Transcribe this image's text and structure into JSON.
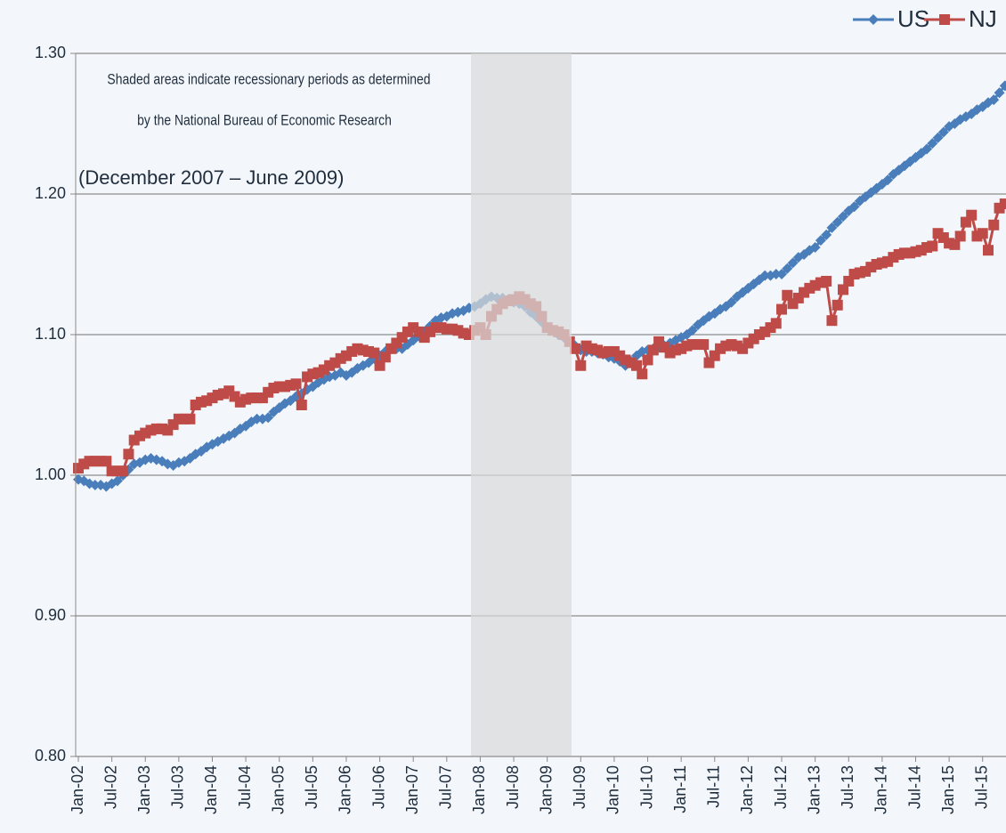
{
  "chart_data": {
    "type": "line",
    "annotations": [
      "Shaded areas indicate recessionary periods as determined",
      "by the National  Bureau of Economic Research",
      "(December 2007 – June 2009)"
    ],
    "categories": [
      "Jan-02",
      null,
      null,
      null,
      null,
      null,
      "Jul-02",
      null,
      null,
      null,
      null,
      null,
      "Jan-03",
      null,
      null,
      null,
      null,
      null,
      "Jul-03",
      null,
      null,
      null,
      null,
      null,
      "Jan-04",
      null,
      null,
      null,
      null,
      null,
      "Jul-04",
      null,
      null,
      null,
      null,
      null,
      "Jan-05",
      null,
      null,
      null,
      null,
      null,
      "Jul-05",
      null,
      null,
      null,
      null,
      null,
      "Jan-06",
      null,
      null,
      null,
      null,
      null,
      "Jul-06",
      null,
      null,
      null,
      null,
      null,
      "Jan-07",
      null,
      null,
      null,
      null,
      null,
      "Jul-07",
      null,
      null,
      null,
      null,
      null,
      "Jan-08",
      null,
      null,
      null,
      null,
      null,
      "Jul-08",
      null,
      null,
      null,
      null,
      null,
      "Jan-09",
      null,
      null,
      null,
      null,
      null,
      "Jul-09",
      null,
      null,
      null,
      null,
      null,
      "Jan-10",
      null,
      null,
      null,
      null,
      null,
      "Jul-10",
      null,
      null,
      null,
      null,
      null,
      "Jan-11",
      null,
      null,
      null,
      null,
      null,
      "Jul-11",
      null,
      null,
      null,
      null,
      null,
      "Jan-12",
      null,
      null,
      null,
      null,
      null,
      "Jul-12",
      null,
      null,
      null,
      null,
      null,
      "Jan-13",
      null,
      null,
      null,
      null,
      null,
      "Jul-13",
      null,
      null,
      null,
      null,
      null,
      "Jan-14",
      null,
      null,
      null,
      null,
      null,
      "Jul-14",
      null,
      null,
      null,
      null,
      null,
      "Jan-15",
      null,
      null,
      null,
      null,
      null,
      "Jul-15",
      null,
      null,
      null,
      null
    ],
    "series": [
      {
        "name": "US",
        "color": "#4a7ebb",
        "marker": "diamond",
        "values": [
          0.997,
          0.996,
          0.994,
          0.993,
          0.993,
          0.992,
          0.994,
          0.996,
          1.0,
          1.004,
          1.008,
          1.009,
          1.011,
          1.012,
          1.011,
          1.01,
          1.008,
          1.007,
          1.009,
          1.01,
          1.012,
          1.015,
          1.017,
          1.02,
          1.022,
          1.024,
          1.026,
          1.028,
          1.03,
          1.033,
          1.035,
          1.038,
          1.04,
          1.04,
          1.041,
          1.045,
          1.048,
          1.051,
          1.053,
          1.056,
          1.058,
          1.061,
          1.063,
          1.066,
          1.068,
          1.07,
          1.071,
          1.073,
          1.071,
          1.073,
          1.076,
          1.078,
          1.08,
          1.083,
          1.085,
          1.088,
          1.09,
          1.09,
          1.09,
          1.093,
          1.096,
          1.099,
          1.102,
          1.106,
          1.11,
          1.112,
          1.113,
          1.115,
          1.116,
          1.117,
          1.119,
          1.12,
          1.122,
          1.125,
          1.127,
          1.126,
          1.126,
          1.125,
          1.123,
          1.122,
          1.12,
          1.116,
          1.113,
          1.109,
          1.105,
          1.103,
          1.1,
          1.098,
          1.095,
          1.092,
          1.089,
          1.088,
          1.088,
          1.087,
          1.086,
          1.084,
          1.083,
          1.081,
          1.078,
          1.081,
          1.085,
          1.088,
          1.089,
          1.09,
          1.091,
          1.092,
          1.094,
          1.096,
          1.098,
          1.1,
          1.103,
          1.107,
          1.11,
          1.113,
          1.115,
          1.118,
          1.12,
          1.123,
          1.127,
          1.13,
          1.133,
          1.136,
          1.139,
          1.142,
          1.142,
          1.143,
          1.143,
          1.147,
          1.151,
          1.155,
          1.157,
          1.16,
          1.162,
          1.167,
          1.171,
          1.176,
          1.18,
          1.184,
          1.188,
          1.191,
          1.195,
          1.198,
          1.201,
          1.204,
          1.207,
          1.21,
          1.214,
          1.217,
          1.22,
          1.223,
          1.226,
          1.229,
          1.232,
          1.236,
          1.24,
          1.244,
          1.248,
          1.25,
          1.253,
          1.255,
          1.257,
          1.26,
          1.262,
          1.265,
          1.267,
          1.272,
          1.277
        ]
      },
      {
        "name": "NJ",
        "color": "#be4b48",
        "marker": "square",
        "values": [
          1.005,
          1.008,
          1.01,
          1.01,
          1.01,
          1.01,
          1.003,
          1.003,
          1.003,
          1.015,
          1.025,
          1.028,
          1.03,
          1.032,
          1.033,
          1.033,
          1.032,
          1.036,
          1.04,
          1.04,
          1.04,
          1.05,
          1.052,
          1.053,
          1.055,
          1.057,
          1.058,
          1.06,
          1.056,
          1.052,
          1.054,
          1.055,
          1.055,
          1.055,
          1.059,
          1.062,
          1.063,
          1.063,
          1.064,
          1.065,
          1.05,
          1.07,
          1.072,
          1.073,
          1.075,
          1.078,
          1.08,
          1.083,
          1.085,
          1.088,
          1.09,
          1.089,
          1.088,
          1.087,
          1.078,
          1.084,
          1.09,
          1.094,
          1.098,
          1.102,
          1.105,
          1.102,
          1.098,
          1.102,
          1.105,
          1.105,
          1.104,
          1.104,
          1.103,
          1.101,
          1.1,
          1.103,
          1.105,
          1.1,
          1.113,
          1.118,
          1.122,
          1.124,
          1.125,
          1.127,
          1.125,
          1.122,
          1.12,
          1.113,
          1.105,
          1.103,
          1.102,
          1.1,
          1.095,
          1.09,
          1.078,
          1.092,
          1.09,
          1.089,
          1.087,
          1.088,
          1.088,
          1.085,
          1.082,
          1.08,
          1.078,
          1.072,
          1.082,
          1.089,
          1.095,
          1.091,
          1.087,
          1.089,
          1.09,
          1.092,
          1.093,
          1.093,
          1.093,
          1.08,
          1.085,
          1.09,
          1.092,
          1.093,
          1.092,
          1.09,
          1.094,
          1.097,
          1.1,
          1.102,
          1.105,
          1.108,
          1.118,
          1.128,
          1.122,
          1.126,
          1.13,
          1.133,
          1.135,
          1.137,
          1.138,
          1.11,
          1.121,
          1.132,
          1.138,
          1.143,
          1.144,
          1.145,
          1.148,
          1.15,
          1.151,
          1.152,
          1.155,
          1.157,
          1.158,
          1.158,
          1.159,
          1.16,
          1.162,
          1.163,
          1.172,
          1.169,
          1.165,
          1.164,
          1.17,
          1.18,
          1.185,
          1.17,
          1.172,
          1.16,
          1.178,
          1.19,
          1.193
        ]
      }
    ],
    "ylim": [
      0.8,
      1.3
    ],
    "yticks": [
      {
        "value": 0.8,
        "label": "0.80"
      },
      {
        "value": 0.9,
        "label": "0.90"
      },
      {
        "value": 1.0,
        "label": "1.00"
      },
      {
        "value": 1.1,
        "label": "1.10"
      },
      {
        "value": 1.2,
        "label": "1.20"
      },
      {
        "value": 1.3,
        "label": "1.30"
      }
    ],
    "grid": true,
    "legend": "top-right"
  }
}
